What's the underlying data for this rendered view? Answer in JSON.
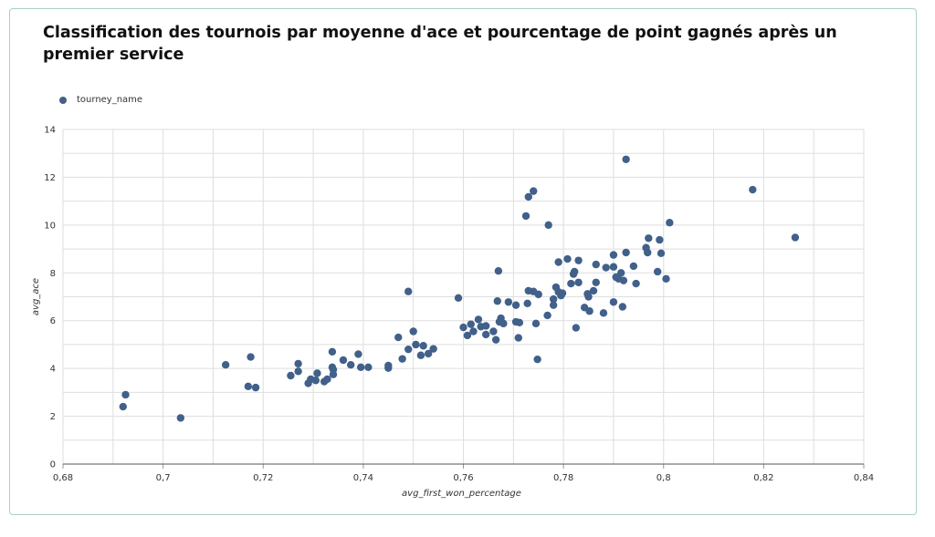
{
  "chart_data": {
    "type": "scatter",
    "title": "Classification des tournois par moyenne d'ace et pourcentage de point gagnés après un premier service",
    "xlabel": "avg_first_won_percentage",
    "ylabel": "avg_ace",
    "legend": {
      "label": "tourney_name",
      "placement": "top-left"
    },
    "xlim": [
      0.68,
      0.84
    ],
    "ylim": [
      0,
      14
    ],
    "x_ticks": [
      "0,68",
      "0,7",
      "0,72",
      "0,74",
      "0,76",
      "0,78",
      "0,8",
      "0,82",
      "0,84"
    ],
    "y_ticks": [
      "0",
      "2",
      "4",
      "6",
      "8",
      "10",
      "12",
      "14"
    ],
    "grid": true,
    "color": "#41608a",
    "series": [
      {
        "name": "tourney_name",
        "points": [
          [
            0.692,
            2.4
          ],
          [
            0.6925,
            2.9
          ],
          [
            0.7035,
            1.93
          ],
          [
            0.7125,
            4.15
          ],
          [
            0.717,
            3.25
          ],
          [
            0.7175,
            4.48
          ],
          [
            0.7185,
            3.2
          ],
          [
            0.7255,
            3.7
          ],
          [
            0.727,
            4.2
          ],
          [
            0.727,
            3.88
          ],
          [
            0.729,
            3.38
          ],
          [
            0.7295,
            3.55
          ],
          [
            0.7305,
            3.5
          ],
          [
            0.7308,
            3.8
          ],
          [
            0.7322,
            3.45
          ],
          [
            0.7328,
            3.55
          ],
          [
            0.7338,
            4.7
          ],
          [
            0.7338,
            4.05
          ],
          [
            0.734,
            3.75
          ],
          [
            0.734,
            3.95
          ],
          [
            0.736,
            4.35
          ],
          [
            0.7375,
            4.15
          ],
          [
            0.739,
            4.6
          ],
          [
            0.7395,
            4.05
          ],
          [
            0.741,
            4.05
          ],
          [
            0.745,
            4.02
          ],
          [
            0.745,
            4.12
          ],
          [
            0.747,
            5.3
          ],
          [
            0.7478,
            4.4
          ],
          [
            0.749,
            4.8
          ],
          [
            0.749,
            7.22
          ],
          [
            0.75,
            5.55
          ],
          [
            0.7505,
            5.0
          ],
          [
            0.7515,
            4.55
          ],
          [
            0.752,
            4.95
          ],
          [
            0.753,
            4.62
          ],
          [
            0.754,
            4.82
          ],
          [
            0.759,
            6.95
          ],
          [
            0.76,
            5.72
          ],
          [
            0.7608,
            5.38
          ],
          [
            0.7615,
            5.85
          ],
          [
            0.762,
            5.55
          ],
          [
            0.763,
            6.05
          ],
          [
            0.7635,
            5.75
          ],
          [
            0.7645,
            5.42
          ],
          [
            0.7645,
            5.78
          ],
          [
            0.766,
            5.55
          ],
          [
            0.7665,
            5.2
          ],
          [
            0.7668,
            6.82
          ],
          [
            0.767,
            8.08
          ],
          [
            0.7672,
            5.95
          ],
          [
            0.7675,
            6.1
          ],
          [
            0.768,
            5.88
          ],
          [
            0.769,
            6.78
          ],
          [
            0.7705,
            5.95
          ],
          [
            0.7705,
            6.65
          ],
          [
            0.771,
            5.28
          ],
          [
            0.7712,
            5.92
          ],
          [
            0.7725,
            10.38
          ],
          [
            0.7728,
            6.72
          ],
          [
            0.773,
            11.18
          ],
          [
            0.773,
            7.25
          ],
          [
            0.774,
            11.42
          ],
          [
            0.774,
            7.22
          ],
          [
            0.7745,
            5.88
          ],
          [
            0.7748,
            4.38
          ],
          [
            0.775,
            7.1
          ],
          [
            0.7768,
            6.22
          ],
          [
            0.777,
            10.0
          ],
          [
            0.778,
            6.9
          ],
          [
            0.778,
            6.65
          ],
          [
            0.7785,
            7.4
          ],
          [
            0.779,
            8.45
          ],
          [
            0.779,
            7.2
          ],
          [
            0.7795,
            7.05
          ],
          [
            0.7798,
            7.15
          ],
          [
            0.7808,
            8.58
          ],
          [
            0.7815,
            7.55
          ],
          [
            0.782,
            7.95
          ],
          [
            0.7822,
            8.05
          ],
          [
            0.7825,
            5.7
          ],
          [
            0.783,
            8.52
          ],
          [
            0.783,
            7.6
          ],
          [
            0.7842,
            6.55
          ],
          [
            0.7848,
            7.12
          ],
          [
            0.785,
            7.0
          ],
          [
            0.7852,
            6.4
          ],
          [
            0.786,
            7.25
          ],
          [
            0.7865,
            8.35
          ],
          [
            0.7865,
            7.6
          ],
          [
            0.788,
            6.32
          ],
          [
            0.7885,
            8.22
          ],
          [
            0.79,
            6.78
          ],
          [
            0.79,
            8.75
          ],
          [
            0.79,
            8.25
          ],
          [
            0.7905,
            7.82
          ],
          [
            0.791,
            7.75
          ],
          [
            0.7915,
            8.0
          ],
          [
            0.7918,
            6.58
          ],
          [
            0.792,
            7.68
          ],
          [
            0.7925,
            12.75
          ],
          [
            0.7925,
            8.85
          ],
          [
            0.794,
            8.28
          ],
          [
            0.7945,
            7.55
          ],
          [
            0.7965,
            9.05
          ],
          [
            0.7968,
            8.85
          ],
          [
            0.797,
            9.45
          ],
          [
            0.7988,
            8.05
          ],
          [
            0.7992,
            9.38
          ],
          [
            0.7995,
            8.82
          ],
          [
            0.8005,
            7.75
          ],
          [
            0.8012,
            10.1
          ],
          [
            0.8178,
            11.48
          ],
          [
            0.8263,
            9.48
          ]
        ]
      }
    ]
  }
}
